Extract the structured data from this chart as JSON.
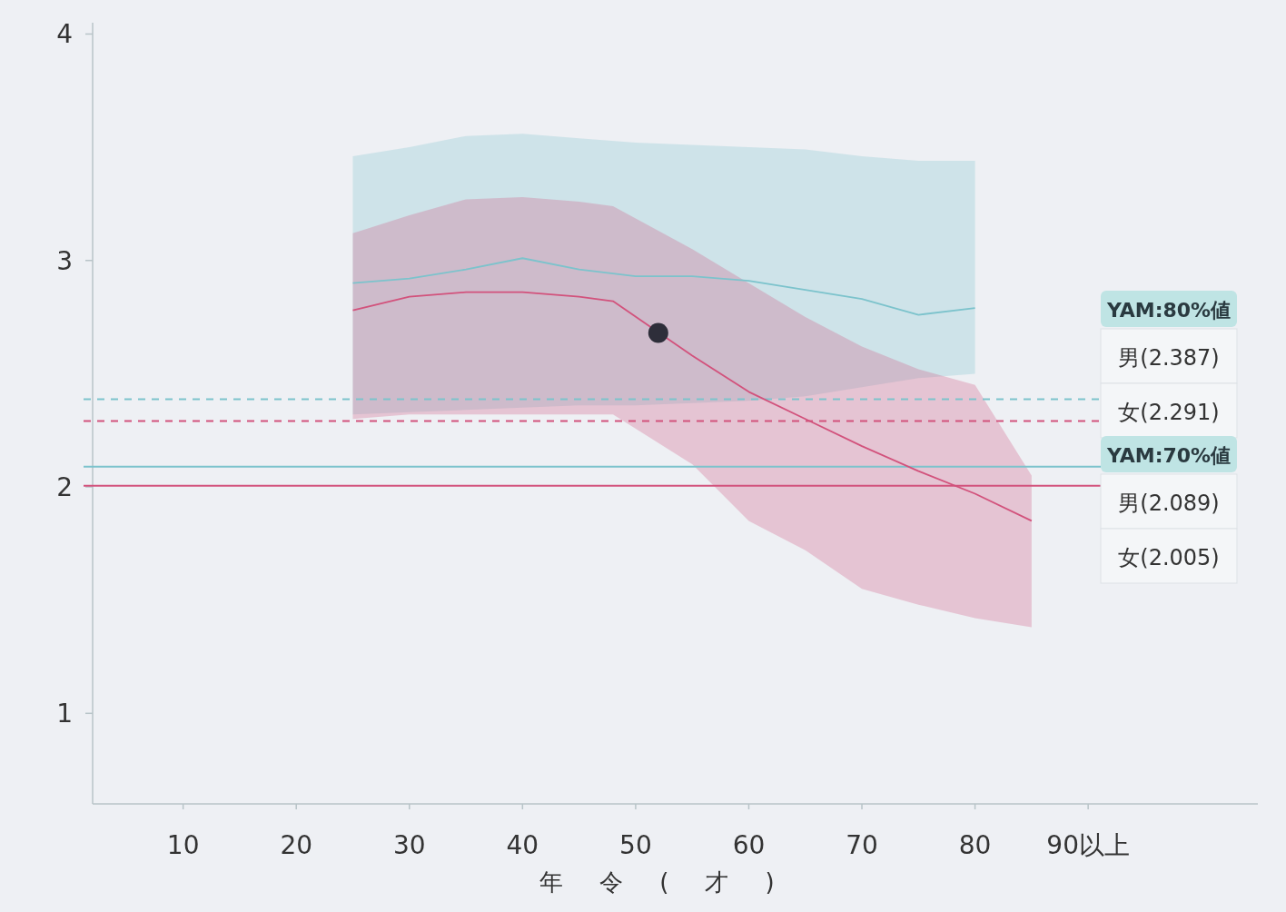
{
  "chart_data": {
    "type": "line",
    "xlabel": "年令(才)",
    "xlim": [
      2,
      105
    ],
    "ylim": [
      0.6,
      4.05
    ],
    "xticks": [
      10,
      20,
      30,
      40,
      50,
      60,
      70,
      80,
      {
        "value": 90,
        "label": "90以上"
      }
    ],
    "yticks": [
      1,
      2,
      3,
      4
    ],
    "series": [
      {
        "color": "#7cc3cc",
        "x": [
          25,
          30,
          35,
          40,
          45,
          50,
          55,
          60,
          65,
          70,
          75,
          80
        ],
        "values": [
          2.9,
          2.92,
          2.96,
          3.01,
          2.96,
          2.93,
          2.93,
          2.91,
          2.87,
          2.83,
          2.76,
          2.79
        ],
        "lower": [
          2.32,
          2.33,
          2.34,
          2.35,
          2.36,
          2.36,
          2.37,
          2.38,
          2.4,
          2.44,
          2.48,
          2.5
        ],
        "upper": [
          3.46,
          3.5,
          3.55,
          3.56,
          3.54,
          3.52,
          3.51,
          3.5,
          3.49,
          3.46,
          3.44,
          3.44
        ]
      },
      {
        "color": "#d2527c",
        "x": [
          25,
          30,
          35,
          40,
          45,
          48,
          55,
          60,
          65,
          70,
          75,
          80,
          85
        ],
        "values": [
          2.78,
          2.84,
          2.86,
          2.86,
          2.84,
          2.82,
          2.58,
          2.42,
          2.3,
          2.18,
          2.07,
          1.97,
          1.85
        ],
        "lower": [
          2.3,
          2.32,
          2.32,
          2.32,
          2.32,
          2.32,
          2.1,
          1.85,
          1.72,
          1.55,
          1.48,
          1.42,
          1.38
        ],
        "upper": [
          3.12,
          3.2,
          3.27,
          3.28,
          3.26,
          3.24,
          3.05,
          2.9,
          2.75,
          2.62,
          2.52,
          2.45,
          2.05
        ]
      },
      {
        "type": "scatter",
        "marker": "circle",
        "color": "#2e2e3a",
        "x": [
          52
        ],
        "values": [
          2.68
        ]
      }
    ],
    "ref_lines": [
      {
        "axis": "y",
        "value": 2.387,
        "label": "男(2.387)",
        "color": "#7cc3cc",
        "line_style": "dashed"
      },
      {
        "axis": "y",
        "value": 2.291,
        "label": "女(2.291)",
        "color": "#d2527c",
        "line_style": "dashed"
      },
      {
        "axis": "y",
        "value": 2.089,
        "label": "男(2.089)",
        "color": "#7cc3cc",
        "line_style": "solid"
      },
      {
        "axis": "y",
        "value": 2.005,
        "label": "女(2.005)",
        "color": "#d2527c",
        "line_style": "solid"
      }
    ],
    "annotations": [
      "YAM:80%値",
      "YAM:70%値"
    ]
  }
}
